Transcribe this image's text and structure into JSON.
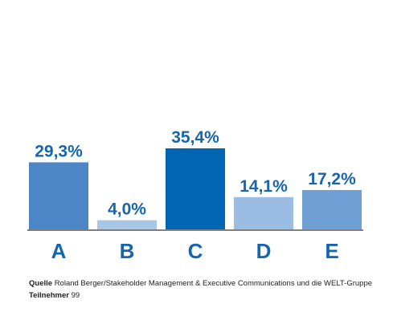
{
  "chart_data": {
    "type": "bar",
    "categories": [
      "A",
      "B",
      "C",
      "D",
      "E"
    ],
    "values": [
      29.3,
      4.0,
      35.4,
      14.1,
      17.2
    ],
    "value_labels": [
      "29,3%",
      "4,0%",
      "35,4%",
      "14,1%",
      "17,2%"
    ],
    "ylim": [
      0,
      35.4
    ],
    "grid": false,
    "colors": [
      "#4d86c6",
      "#a8c6e6",
      "#0066b3",
      "#9bbde3",
      "#6fa0d4"
    ],
    "label_color": "#1566b0"
  },
  "footer": {
    "source_label": "Quelle",
    "source_text": "Roland Berger/Stakeholder Management & Executive Communications  und die WELT-Gruppe",
    "participants_label": "Teilnehmer",
    "participants_text": "99"
  }
}
